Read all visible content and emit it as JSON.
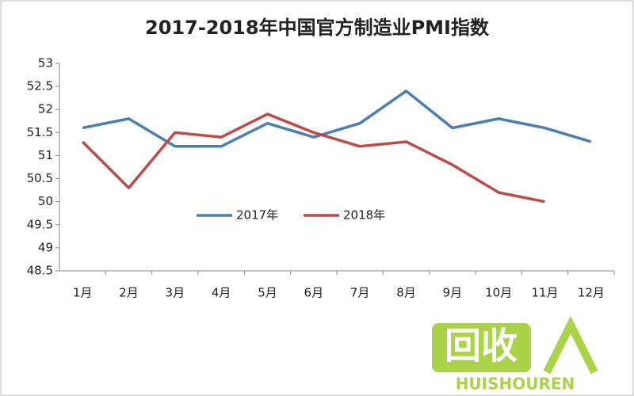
{
  "chart_data": {
    "type": "line",
    "title": "2017-2018年中国官方制造业PMI指数",
    "categories": [
      "1月",
      "2月",
      "3月",
      "4月",
      "5月",
      "6月",
      "7月",
      "8月",
      "9月",
      "10月",
      "11月",
      "12月"
    ],
    "series": [
      {
        "name": "2017年",
        "color": "#4a7eb4",
        "values": [
          51.6,
          51.8,
          51.2,
          51.2,
          51.7,
          51.4,
          51.7,
          52.4,
          51.6,
          51.8,
          51.6,
          51.3
        ]
      },
      {
        "name": "2018年",
        "color": "#be4b48",
        "values": [
          51.3,
          50.3,
          51.5,
          51.4,
          51.9,
          51.5,
          51.2,
          51.3,
          50.8,
          50.2,
          50.0,
          null
        ]
      }
    ],
    "ylim": [
      48.5,
      53
    ],
    "yticks": [
      48.5,
      49,
      49.5,
      50,
      50.5,
      51,
      51.5,
      52,
      52.5,
      53
    ],
    "grid": false
  },
  "watermark": {
    "text": "回收",
    "brand": "HUISHOUREN"
  }
}
